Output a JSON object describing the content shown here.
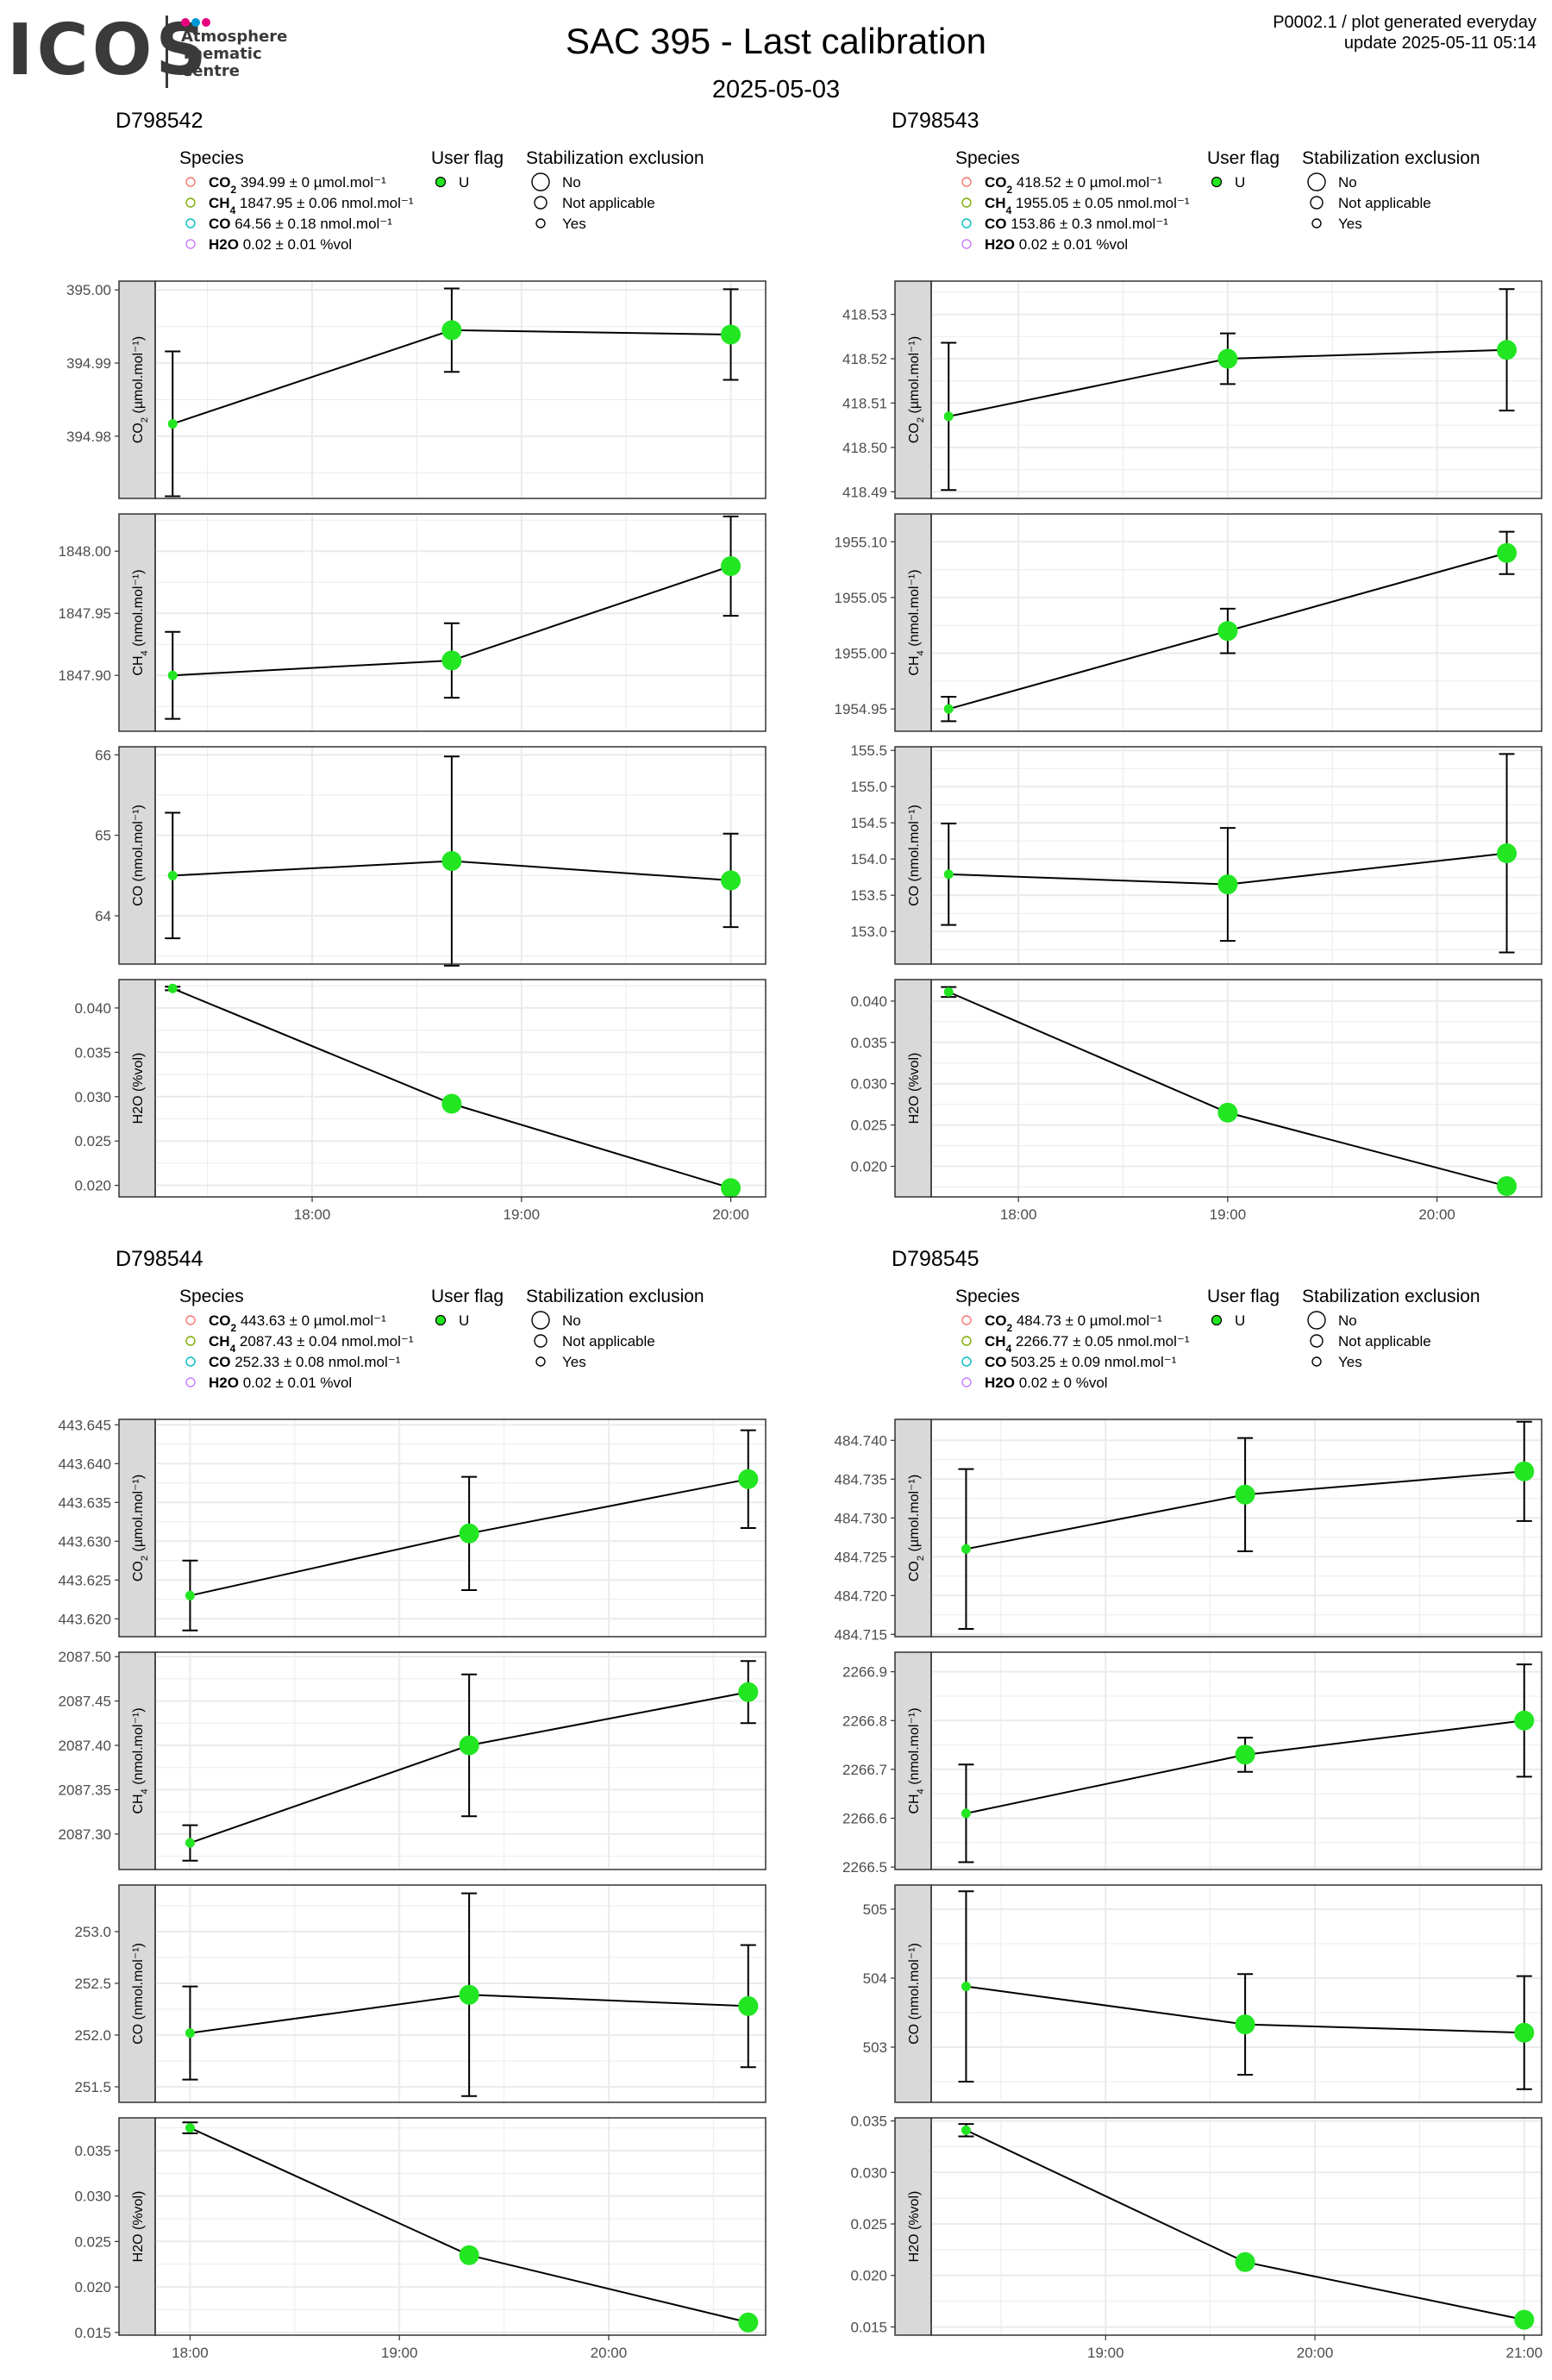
{
  "header": {
    "title": "SAC 395 - Last calibration",
    "subtitle": "2025-05-03",
    "note_line1": "P0002.1 / plot generated everyday",
    "note_line2": "update  2025-05-11 05:14",
    "logo_word": "ICOS",
    "logo_line1": "Atmosphere",
    "logo_line2": "Thematic",
    "logo_line3": "Centre"
  },
  "legend": {
    "species_title": "Species",
    "flag_title": "User flag",
    "stab_title": "Stabilization exclusion",
    "flag_value": "U",
    "stab_items": [
      "No",
      "Not applicable",
      "Yes"
    ]
  },
  "colors": {
    "co2": "#f8766d",
    "ch4": "#7cae00",
    "co": "#00bfc4",
    "h2o": "#c77cff",
    "point": "#22e622",
    "strip": "#d9d9d9",
    "grid": "#ebebeb",
    "logo_dots": [
      "#e6007e",
      "#0099d8",
      "#e6007e"
    ]
  },
  "chart_data": [
    {
      "type": "line",
      "title": "D798542",
      "legend": [
        {
          "species": "CO2",
          "text": "394.99 ± 0 µmol.mol⁻¹"
        },
        {
          "species": "CH4",
          "text": "1847.95 ± 0.06 nmol.mol⁻¹"
        },
        {
          "species": "CO",
          "text": "64.56 ± 0.18 nmol.mol⁻¹"
        },
        {
          "species": "H2O",
          "text": "0.02 ± 0.01 %vol"
        }
      ],
      "xlim": [
        "17:15",
        "20:10"
      ],
      "xticks": [
        "18:00",
        "19:00",
        "20:00"
      ],
      "x": [
        "17:20",
        "18:40",
        "20:00"
      ],
      "stabilization": [
        "Yes",
        "No",
        "No"
      ],
      "facets": [
        {
          "species": "CO2",
          "ylabel": "CO2 (µmol.mol⁻¹)",
          "values": [
            394.9817,
            394.9945,
            394.9939
          ],
          "errors": [
            0.0099,
            0.0057,
            0.0062
          ],
          "ylim": [
            394.9715,
            395.0012
          ],
          "yticks": [
            "394.98",
            "394.99",
            "395.00"
          ]
        },
        {
          "species": "CH4",
          "ylabel": "CH4 (nmol.mol⁻¹)",
          "values": [
            1847.9,
            1847.912,
            1847.988
          ],
          "errors": [
            0.035,
            0.03,
            0.04
          ],
          "ylim": [
            1847.855,
            1848.03
          ],
          "yticks": [
            "1847.90",
            "1847.95",
            "1848.00"
          ]
        },
        {
          "species": "CO",
          "ylabel": "CO (nmol.mol⁻¹)",
          "values": [
            64.5,
            64.68,
            64.44
          ],
          "errors": [
            0.78,
            1.3,
            0.58
          ],
          "ylim": [
            63.4,
            66.1
          ],
          "yticks": [
            "64",
            "65",
            "66"
          ]
        },
        {
          "species": "H2O",
          "ylabel": "H2O (%vol)",
          "values": [
            0.0422,
            0.0292,
            0.0197
          ],
          "errors": [
            0.0002,
            0.0004,
            0.0003
          ],
          "ylim": [
            0.0187,
            0.0432
          ],
          "yticks": [
            "0.020",
            "0.025",
            "0.030",
            "0.035",
            "0.040"
          ]
        }
      ]
    },
    {
      "type": "line",
      "title": "D798543",
      "legend": [
        {
          "species": "CO2",
          "text": "418.52 ± 0 µmol.mol⁻¹"
        },
        {
          "species": "CH4",
          "text": "1955.05 ± 0.05 nmol.mol⁻¹"
        },
        {
          "species": "CO",
          "text": "153.86 ± 0.3 nmol.mol⁻¹"
        },
        {
          "species": "H2O",
          "text": "0.02 ± 0.01 %vol"
        }
      ],
      "xlim": [
        "17:35",
        "20:30"
      ],
      "xticks": [
        "18:00",
        "19:00",
        "20:00"
      ],
      "x": [
        "17:40",
        "19:00",
        "20:20"
      ],
      "stabilization": [
        "Yes",
        "No",
        "No"
      ],
      "facets": [
        {
          "species": "CO2",
          "ylabel": "CO2 (µmol.mol⁻¹)",
          "values": [
            418.507,
            418.52,
            418.522
          ],
          "errors": [
            0.0166,
            0.0057,
            0.0137
          ],
          "ylim": [
            418.4885,
            418.5375
          ],
          "yticks": [
            "418.49",
            "418.50",
            "418.51",
            "418.52",
            "418.53"
          ]
        },
        {
          "species": "CH4",
          "ylabel": "CH4 (nmol.mol⁻¹)",
          "values": [
            1954.95,
            1955.02,
            1955.09
          ],
          "errors": [
            0.011,
            0.02,
            0.019
          ],
          "ylim": [
            1954.93,
            1955.125
          ],
          "yticks": [
            "1954.95",
            "1955.00",
            "1955.05",
            "1955.10"
          ]
        },
        {
          "species": "CO",
          "ylabel": "CO (nmol.mol⁻¹)",
          "values": [
            153.79,
            153.65,
            154.08
          ],
          "errors": [
            0.7,
            0.78,
            1.37
          ],
          "ylim": [
            152.55,
            155.55
          ],
          "yticks": [
            "153.0",
            "153.5",
            "154.0",
            "154.5",
            "155.0",
            "155.5"
          ]
        },
        {
          "species": "H2O",
          "ylabel": "H2O (%vol)",
          "values": [
            0.0411,
            0.0265,
            0.0176
          ],
          "errors": [
            0.0006,
            0.0005,
            0.0004
          ],
          "ylim": [
            0.0163,
            0.0426
          ],
          "yticks": [
            "0.020",
            "0.025",
            "0.030",
            "0.035",
            "0.040"
          ]
        }
      ]
    },
    {
      "type": "line",
      "title": "D798544",
      "legend": [
        {
          "species": "CO2",
          "text": "443.63 ± 0 µmol.mol⁻¹"
        },
        {
          "species": "CH4",
          "text": "2087.43 ± 0.04 nmol.mol⁻¹"
        },
        {
          "species": "CO",
          "text": "252.33 ± 0.08 nmol.mol⁻¹"
        },
        {
          "species": "H2O",
          "text": "0.02 ± 0.01 %vol"
        }
      ],
      "xlim": [
        "17:50",
        "20:45"
      ],
      "xticks": [
        "18:00",
        "19:00",
        "20:00"
      ],
      "x": [
        "18:00",
        "19:20",
        "20:40"
      ],
      "stabilization": [
        "Yes",
        "No",
        "No"
      ],
      "facets": [
        {
          "species": "CO2",
          "ylabel": "CO2 (µmol.mol⁻¹)",
          "values": [
            443.623,
            443.631,
            443.638
          ],
          "errors": [
            0.0045,
            0.0073,
            0.0063
          ],
          "ylim": [
            443.6177,
            443.6457
          ],
          "yticks": [
            "443.620",
            "443.625",
            "443.630",
            "443.635",
            "443.640",
            "443.645"
          ]
        },
        {
          "species": "CH4",
          "ylabel": "CH4 (nmol.mol⁻¹)",
          "values": [
            2087.29,
            2087.4,
            2087.46
          ],
          "errors": [
            0.02,
            0.08,
            0.035
          ],
          "ylim": [
            2087.26,
            2087.505
          ],
          "yticks": [
            "2087.30",
            "2087.35",
            "2087.40",
            "2087.45",
            "2087.50"
          ]
        },
        {
          "species": "CO",
          "ylabel": "CO (nmol.mol⁻¹)",
          "values": [
            252.02,
            252.39,
            252.28
          ],
          "errors": [
            0.45,
            0.98,
            0.59
          ],
          "ylim": [
            251.35,
            253.45
          ],
          "yticks": [
            "251.5",
            "252.0",
            "252.5",
            "253.0"
          ]
        },
        {
          "species": "H2O",
          "ylabel": "H2O (%vol)",
          "values": [
            0.0375,
            0.0235,
            0.0161
          ],
          "errors": [
            0.0006,
            0.0005,
            0.0004
          ],
          "ylim": [
            0.0147,
            0.0386
          ],
          "yticks": [
            "0.015",
            "0.020",
            "0.025",
            "0.030",
            "0.035"
          ]
        }
      ]
    },
    {
      "type": "line",
      "title": "D798545",
      "legend": [
        {
          "species": "CO2",
          "text": "484.73 ± 0 µmol.mol⁻¹"
        },
        {
          "species": "CH4",
          "text": "2266.77 ± 0.05 nmol.mol⁻¹"
        },
        {
          "species": "CO",
          "text": "503.25 ± 0.09 nmol.mol⁻¹"
        },
        {
          "species": "H2O",
          "text": "0.02 ± 0 %vol"
        }
      ],
      "xlim": [
        "18:10",
        "21:05"
      ],
      "xticks": [
        "19:00",
        "20:00",
        "21:00"
      ],
      "x": [
        "18:20",
        "19:40",
        "21:00"
      ],
      "stabilization": [
        "Yes",
        "No",
        "No"
      ],
      "facets": [
        {
          "species": "CO2",
          "ylabel": "CO2 (µmol.mol⁻¹)",
          "values": [
            484.726,
            484.733,
            484.736
          ],
          "errors": [
            0.0103,
            0.0073,
            0.0064
          ],
          "ylim": [
            484.7147,
            484.7427
          ],
          "yticks": [
            "484.715",
            "484.720",
            "484.725",
            "484.730",
            "484.735",
            "484.740"
          ]
        },
        {
          "species": "CH4",
          "ylabel": "CH4 (nmol.mol⁻¹)",
          "values": [
            2266.61,
            2266.73,
            2266.8
          ],
          "errors": [
            0.1,
            0.035,
            0.115
          ],
          "ylim": [
            2266.495,
            2266.94
          ],
          "yticks": [
            "2266.5",
            "2266.6",
            "2266.7",
            "2266.8",
            "2266.9"
          ]
        },
        {
          "species": "CO",
          "ylabel": "CO (nmol.mol⁻¹)",
          "values": [
            503.88,
            503.33,
            503.21
          ],
          "errors": [
            1.38,
            0.73,
            0.82
          ],
          "ylim": [
            502.2,
            505.35
          ],
          "yticks": [
            "503",
            "504",
            "505"
          ]
        },
        {
          "species": "H2O",
          "ylabel": "H2O (%vol)",
          "values": [
            0.0341,
            0.0213,
            0.0157
          ],
          "errors": [
            0.0006,
            0.0005,
            0.0004
          ],
          "ylim": [
            0.0142,
            0.0353
          ],
          "yticks": [
            "0.015",
            "0.020",
            "0.025",
            "0.030",
            "0.035"
          ]
        }
      ]
    }
  ]
}
